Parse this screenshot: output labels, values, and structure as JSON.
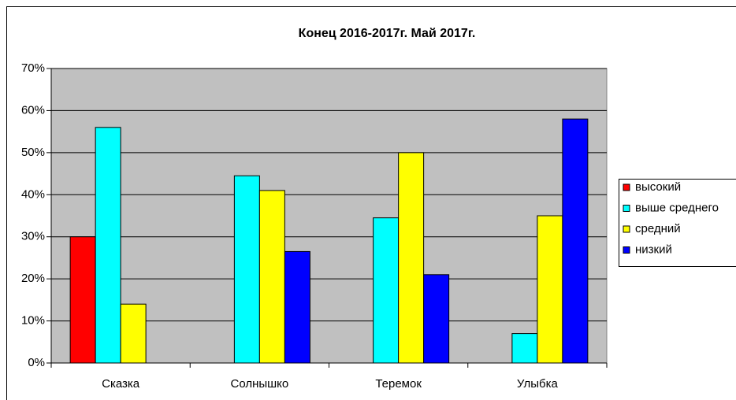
{
  "chart_data": {
    "type": "bar",
    "title": "Конец 2016-2017г. Май 2017г.",
    "categories": [
      "Сказка",
      "Солнышко",
      "Теремок",
      "Улыбка"
    ],
    "series": [
      {
        "name": "высокий",
        "color": "#ff0000",
        "values": [
          30,
          0,
          0,
          0
        ]
      },
      {
        "name": "выше среднего",
        "color": "#00ffff",
        "values": [
          56,
          44.5,
          34.5,
          7
        ]
      },
      {
        "name": "средний",
        "color": "#ffff00",
        "values": [
          14,
          41,
          50,
          35
        ]
      },
      {
        "name": "низкий",
        "color": "#0000ff",
        "values": [
          0,
          26.5,
          21,
          58
        ]
      }
    ],
    "ylim": [
      0,
      70
    ],
    "yticks": [
      {
        "value": 0,
        "label": "0%"
      },
      {
        "value": 10,
        "label": "10%"
      },
      {
        "value": 20,
        "label": "20%"
      },
      {
        "value": 30,
        "label": "30%"
      },
      {
        "value": 40,
        "label": "40%"
      },
      {
        "value": 50,
        "label": "50%"
      },
      {
        "value": 60,
        "label": "60%"
      },
      {
        "value": 70,
        "label": "70%"
      }
    ],
    "grid": true,
    "legend": "right"
  }
}
